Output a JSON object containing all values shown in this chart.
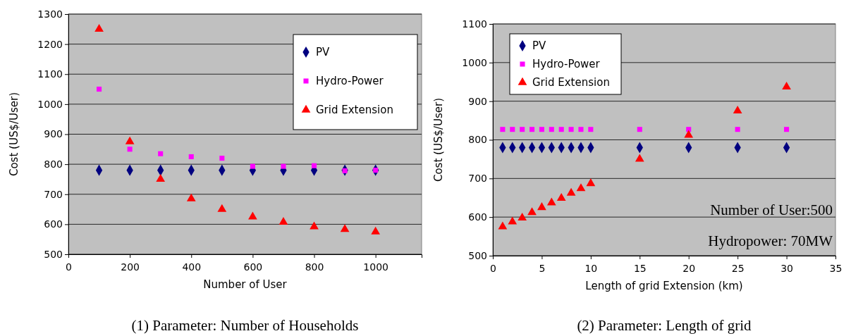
{
  "chart_data": [
    {
      "type": "scatter",
      "title": "(1) Parameter: Number of Households",
      "xlabel": "Number of User",
      "ylabel": "Cost (US$/User)",
      "x": [
        100,
        200,
        300,
        400,
        500,
        600,
        700,
        800,
        900,
        1000
      ],
      "series": [
        {
          "name": "PV",
          "color": "#000080",
          "marker": "diamond",
          "values": [
            780,
            780,
            780,
            780,
            780,
            780,
            780,
            780,
            780,
            780
          ]
        },
        {
          "name": "Hydro-Power",
          "color": "#ff00ff",
          "marker": "square",
          "values": [
            1050,
            850,
            835,
            825,
            820,
            793,
            793,
            795,
            778,
            780
          ]
        },
        {
          "name": "Grid Extension",
          "color": "#ff0000",
          "marker": "triangle",
          "values": [
            1250,
            875,
            750,
            685,
            650,
            625,
            607,
            592,
            583,
            575
          ]
        }
      ],
      "xlim": [
        0,
        1150
      ],
      "xticks": [
        0,
        200,
        400,
        600,
        800,
        1000
      ],
      "ylim": [
        500,
        1300
      ],
      "yticks": [
        500,
        600,
        700,
        800,
        900,
        1000,
        1100,
        1200,
        1300
      ],
      "grid": "y",
      "legend": "top right"
    },
    {
      "type": "scatter",
      "title": "(2) Parameter: Length of grid",
      "xlabel": "Length of grid Extension (km)",
      "ylabel": "Cost (US$/User)",
      "x": [
        1,
        2,
        3,
        4,
        5,
        6,
        7,
        8,
        9,
        10,
        15,
        20,
        25,
        30
      ],
      "series": [
        {
          "name": "PV",
          "color": "#000080",
          "marker": "diamond",
          "values": [
            780,
            780,
            780,
            780,
            780,
            780,
            780,
            780,
            780,
            780,
            780,
            780,
            780,
            780
          ]
        },
        {
          "name": "Hydro-Power",
          "color": "#ff00ff",
          "marker": "square",
          "values": [
            827,
            827,
            827,
            827,
            827,
            827,
            827,
            827,
            827,
            827,
            827,
            827,
            827,
            827
          ]
        },
        {
          "name": "Grid Extension",
          "color": "#ff0000",
          "marker": "triangle",
          "values": [
            575,
            588,
            598,
            612,
            625,
            637,
            649,
            662,
            674,
            687,
            750,
            812,
            875,
            937
          ]
        }
      ],
      "xlim": [
        0,
        35
      ],
      "xticks": [
        0,
        5,
        10,
        15,
        20,
        25,
        30,
        35
      ],
      "ylim": [
        500,
        1100
      ],
      "yticks": [
        500,
        600,
        700,
        800,
        900,
        1000,
        1100
      ],
      "grid": "y",
      "legend": "top left",
      "annotations": [
        "Number of User:500",
        "Hydropower: 70MW"
      ]
    }
  ]
}
